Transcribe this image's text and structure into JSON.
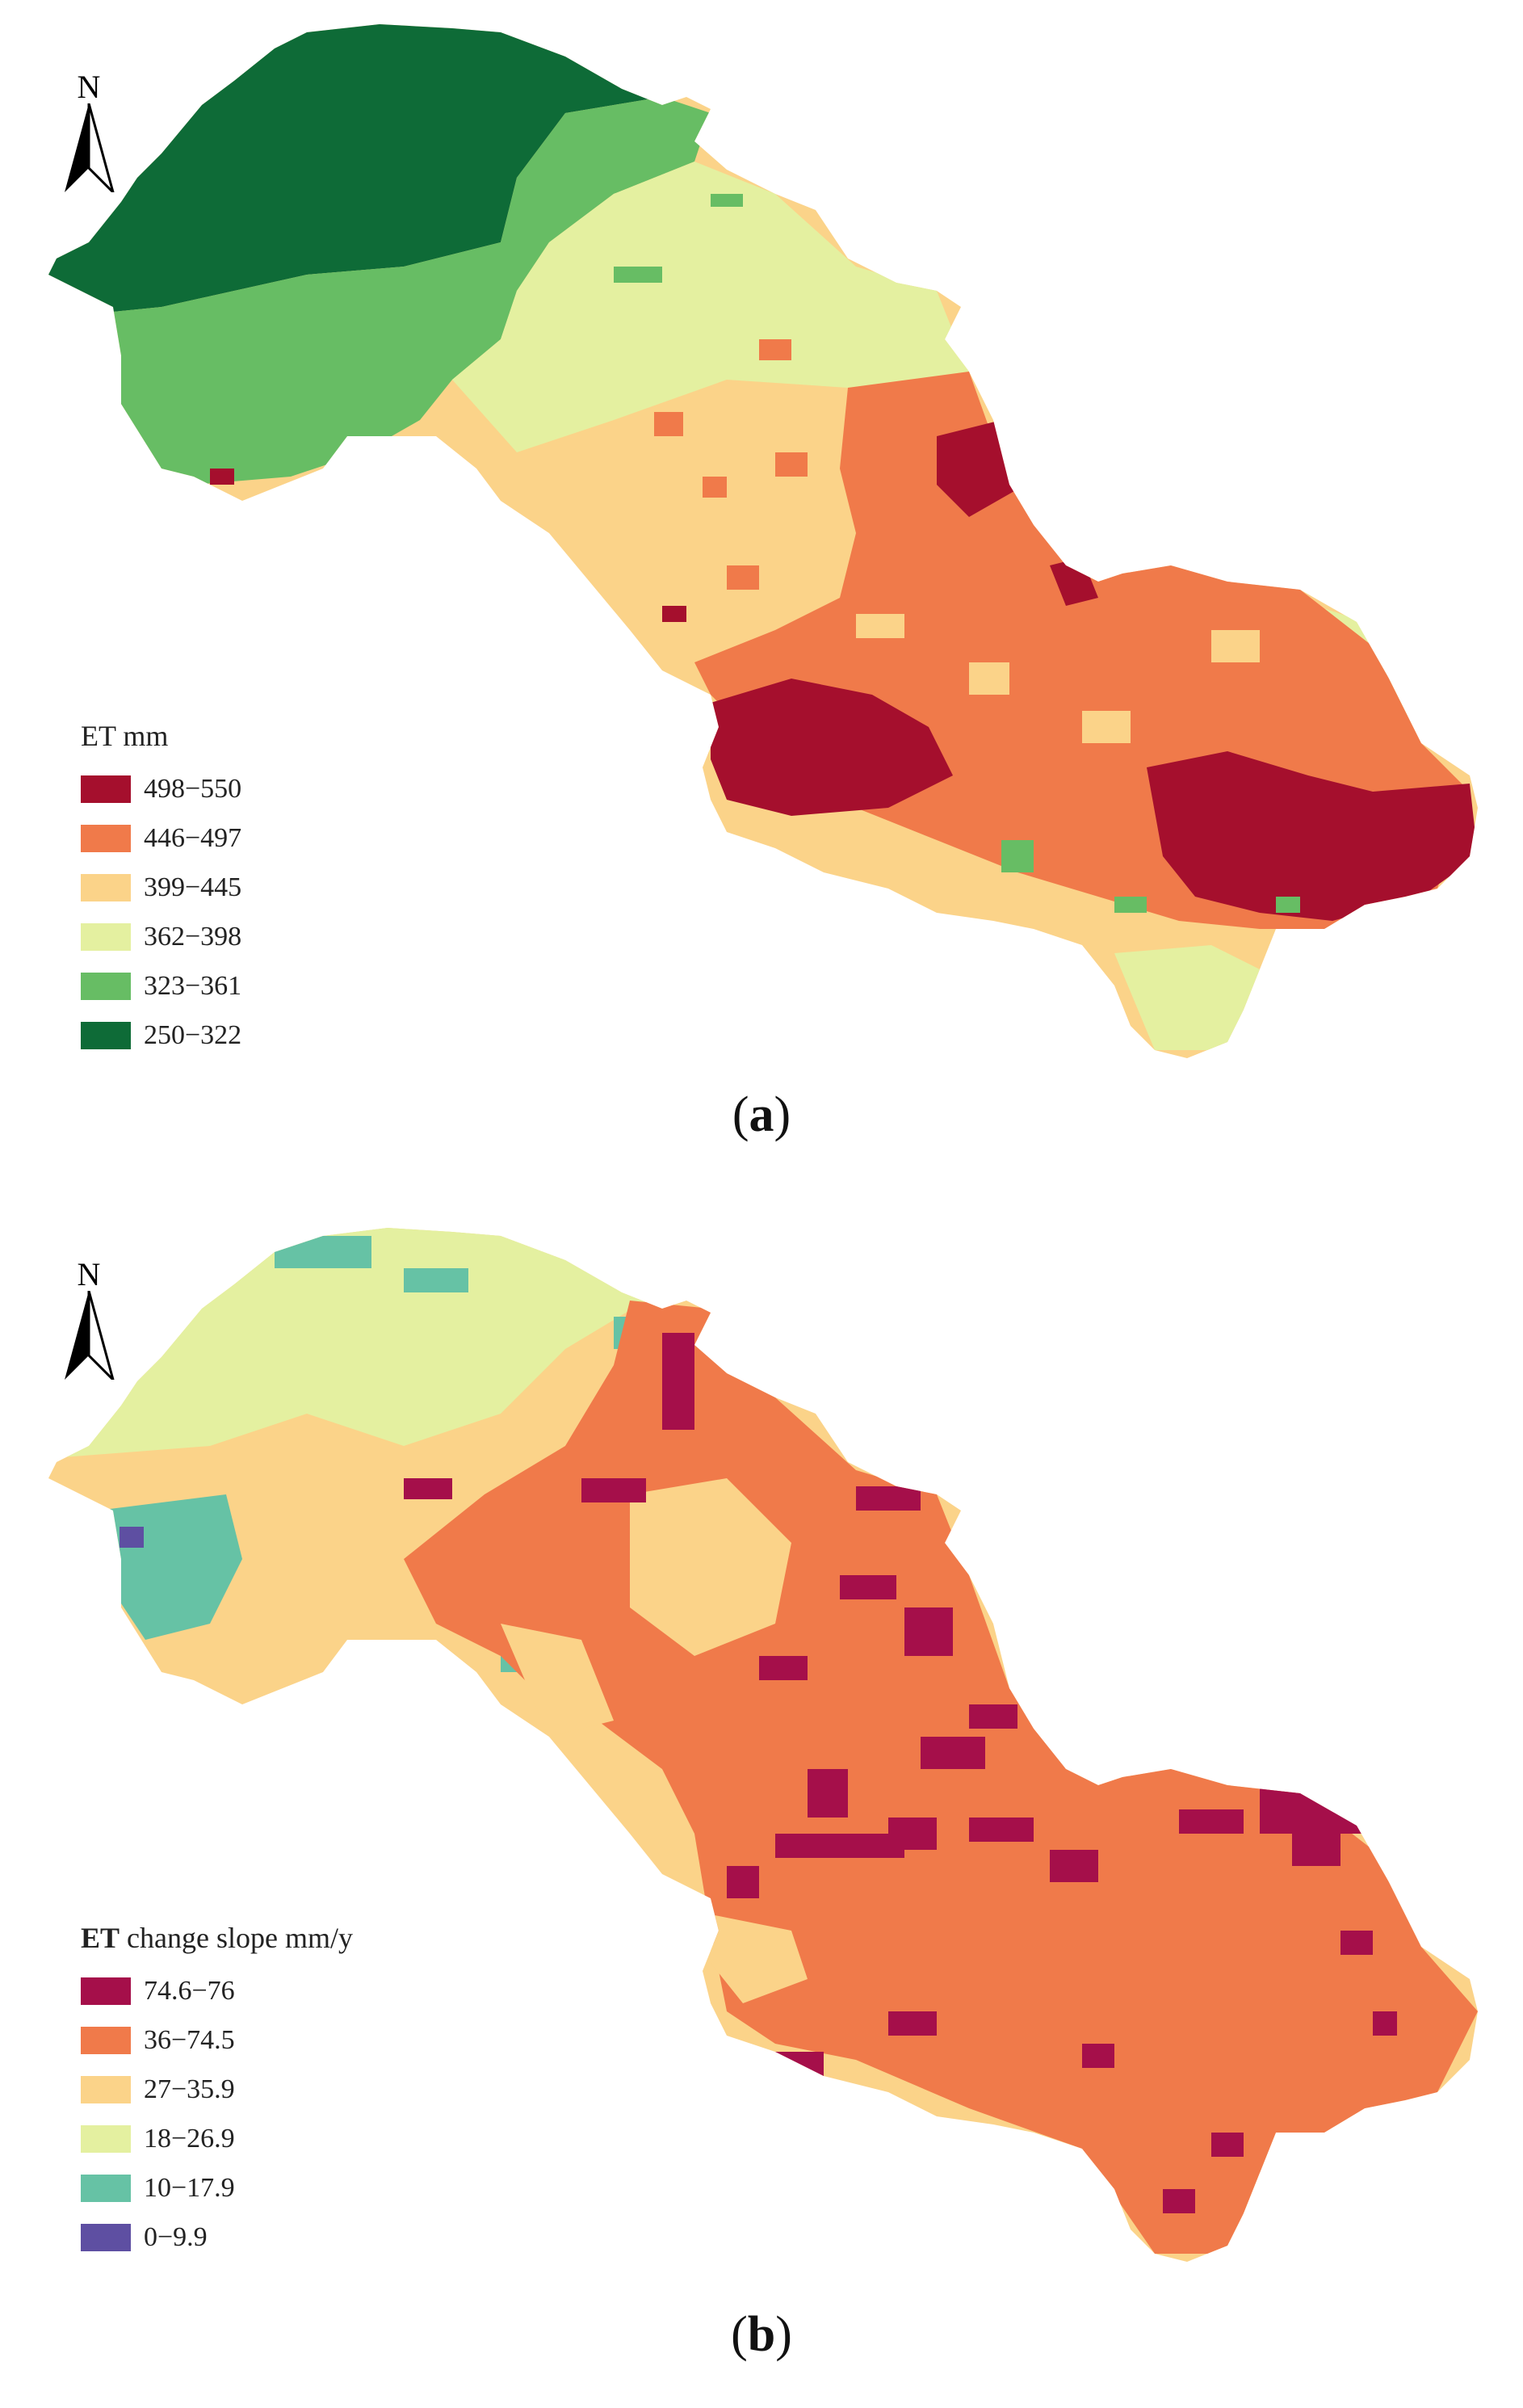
{
  "panels": {
    "a": {
      "caption_letter": "a",
      "north_label": "N",
      "legend_title": "ET mm",
      "legend": [
        {
          "label": "498−550",
          "color": "#a50f2d"
        },
        {
          "label": "446−497",
          "color": "#f07a4a"
        },
        {
          "label": "399−445",
          "color": "#fbd389"
        },
        {
          "label": "362−398",
          "color": "#e4f0a0"
        },
        {
          "label": "323−361",
          "color": "#67bd64"
        },
        {
          "label": "250−322",
          "color": "#0e6b37"
        }
      ]
    },
    "b": {
      "caption_letter": "b",
      "north_label": "N",
      "legend_title_bold": "ET",
      "legend_title_rest": " change slope mm/y",
      "legend": [
        {
          "label": "74.6−76",
          "color": "#a50f4a"
        },
        {
          "label": "36−74.5",
          "color": "#f07a4a"
        },
        {
          "label": "27−35.9",
          "color": "#fbd389"
        },
        {
          "label": "18−26.9",
          "color": "#e4f0a0"
        },
        {
          "label": "10−17.9",
          "color": "#66c2a5"
        },
        {
          "label": "0−9.9",
          "color": "#5e4fa2"
        }
      ]
    }
  }
}
